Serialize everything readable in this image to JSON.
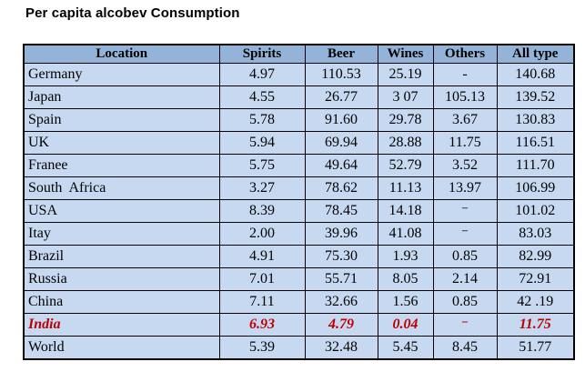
{
  "chart_data": {
    "type": "table",
    "title": "Per capita alcobev Consumption",
    "columns": [
      "Location",
      "Spirits",
      "Beer",
      "Wines",
      "Others",
      "All type"
    ],
    "rows": [
      {
        "location": "Germany",
        "values": [
          "4.97",
          "110.53",
          "25.19",
          "-",
          "140.68"
        ],
        "highlight": false
      },
      {
        "location": "Japan",
        "values": [
          "4.55",
          "26.77",
          "3 07",
          "105.13",
          "139.52"
        ],
        "highlight": false
      },
      {
        "location": "Spain",
        "values": [
          "5.78",
          "91.60",
          "29.78",
          "3.67",
          "130.83"
        ],
        "highlight": false
      },
      {
        "location": "UK",
        "values": [
          "5.94",
          "69.94",
          "28.88",
          "11.75",
          "116.51"
        ],
        "highlight": false
      },
      {
        "location": "Franee",
        "values": [
          "5.75",
          "49.64",
          "52.79",
          "3.52",
          "111.70"
        ],
        "highlight": false
      },
      {
        "location": "South  Africa",
        "values": [
          "3.27",
          "78.62",
          "11.13",
          "13.97",
          "106.99"
        ],
        "highlight": false
      },
      {
        "location": "USA",
        "values": [
          "8.39",
          "78.45",
          "14.18",
          "⁻",
          "101.02"
        ],
        "highlight": false
      },
      {
        "location": "Itay",
        "values": [
          "2.00",
          "39.96",
          "41.08",
          "⁻",
          "83.03"
        ],
        "highlight": false
      },
      {
        "location": "Brazil",
        "values": [
          "4.91",
          "75.30",
          "1.93",
          "0.85",
          "82.99"
        ],
        "highlight": false
      },
      {
        "location": "Russia",
        "values": [
          "7.01",
          "55.71",
          "8.05",
          "2.14",
          "72.91"
        ],
        "highlight": false
      },
      {
        "location": "China",
        "values": [
          "7.11",
          "32.66",
          "1.56",
          "0.85",
          "42 .19"
        ],
        "highlight": false
      },
      {
        "location": "India",
        "values": [
          "6.93",
          "4.79",
          "0.04",
          "⁻",
          "11.75"
        ],
        "highlight": true
      },
      {
        "location": "World",
        "values": [
          "5.39",
          "32.48",
          "5.45",
          "8.45",
          "51.77"
        ],
        "highlight": false
      }
    ],
    "layout": {
      "grid": true,
      "header_row": true,
      "highlighted_row": "India"
    }
  },
  "colors": {
    "header_bg": "#94B3D8",
    "row_bg": "#C6D9F1",
    "border": "#000000",
    "text": "#000000",
    "highlight_text": "#C00000",
    "page_bg": "#FFFFFF"
  }
}
